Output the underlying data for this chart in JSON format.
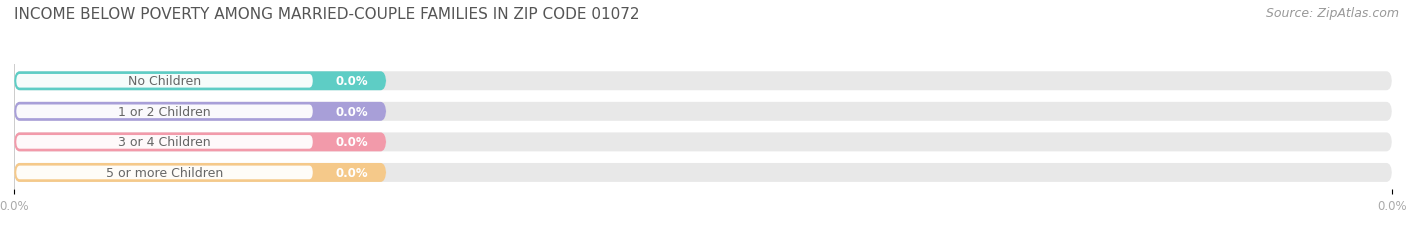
{
  "title": "INCOME BELOW POVERTY AMONG MARRIED-COUPLE FAMILIES IN ZIP CODE 01072",
  "source": "Source: ZipAtlas.com",
  "categories": [
    "No Children",
    "1 or 2 Children",
    "3 or 4 Children",
    "5 or more Children"
  ],
  "values": [
    0.0,
    0.0,
    0.0,
    0.0
  ],
  "bar_colors": [
    "#5ecdc5",
    "#a89fd8",
    "#f29aaa",
    "#f5c98a"
  ],
  "bar_bg_color": "#e8e8e8",
  "bar_height": 0.62,
  "xlim_max": 100,
  "title_fontsize": 11,
  "source_fontsize": 9,
  "label_fontsize": 9,
  "value_fontsize": 8.5,
  "background_color": "#ffffff",
  "label_area_pct": 22,
  "value_area_pct": 5,
  "xtick_labels": [
    "0.0%",
    "0.0%"
  ]
}
